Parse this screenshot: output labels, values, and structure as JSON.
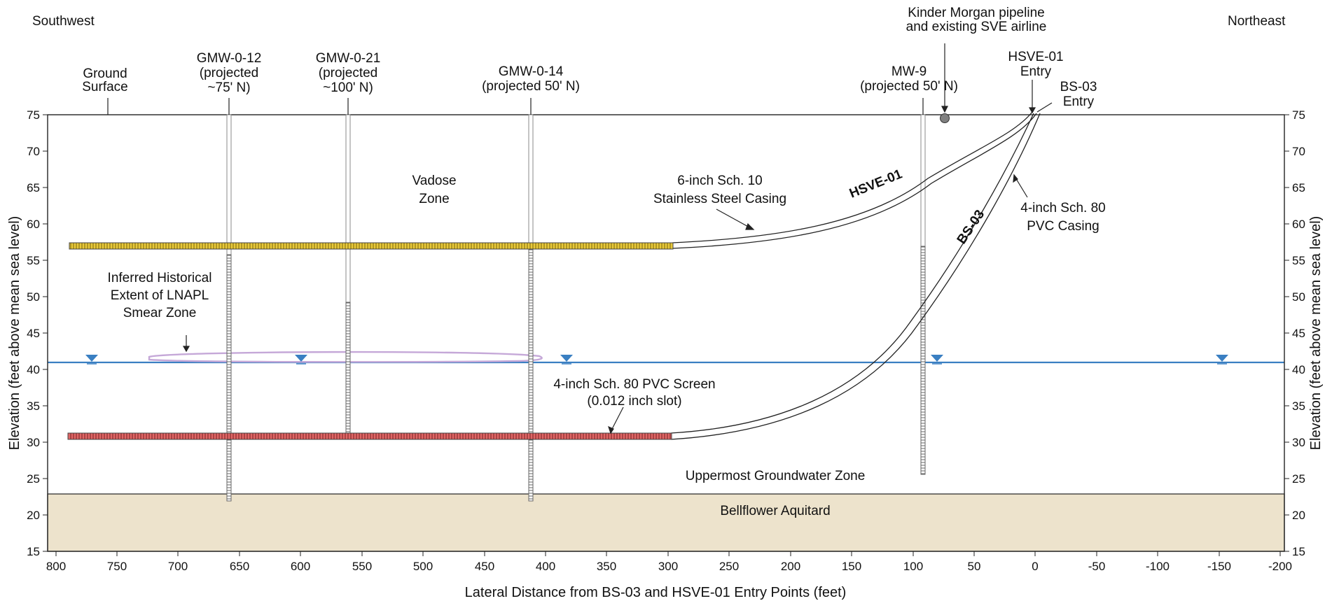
{
  "chart_data": {
    "type": "cross-section",
    "xlabel": "Lateral Distance from BS-03 and HSVE-01 Entry Points (feet)",
    "ylabel_left": "Elevation (feet above mean sea level)",
    "ylabel_right": "Elevation (feet above mean sea level)",
    "xlim": [
      800,
      -200
    ],
    "ylim": [
      15,
      75
    ],
    "x_ticks": [
      800,
      750,
      700,
      650,
      600,
      550,
      500,
      450,
      400,
      350,
      300,
      250,
      200,
      150,
      100,
      50,
      0,
      -50,
      -100,
      -150,
      -200
    ],
    "y_ticks": [
      15,
      20,
      25,
      30,
      35,
      40,
      45,
      50,
      55,
      60,
      65,
      70,
      75
    ],
    "ground_surface_elev": 75,
    "groundwater_elev": 40.8,
    "aquitard_top_elev": 22.8,
    "water_table_markers_x": [
      773,
      602,
      385,
      83,
      -150
    ],
    "wells": [
      {
        "name": "GMW-0-12",
        "x": 660,
        "bottom": 21.5,
        "screen_top": 55.5
      },
      {
        "name": "GMW-0-21",
        "x": 563,
        "bottom": 30.5,
        "screen_top": 49
      },
      {
        "name": "MW-9",
        "x": 93,
        "bottom": 25,
        "screen_top": 57
      },
      {
        "name": "GMW-0-14",
        "x": 413,
        "bottom": 21.5,
        "screen_top": 57
      }
    ],
    "horizontal_wells": [
      {
        "name": "HSVE-01",
        "entry_x": 5,
        "screen_x": [
          790,
          300
        ],
        "screen_elev": 56.8
      },
      {
        "name": "BS-03",
        "entry_x": 0,
        "screen_x": [
          790,
          300
        ],
        "screen_elev": 30.4
      }
    ],
    "smear_zone": {
      "x": [
        725,
        415
      ],
      "elev": [
        41.4,
        42.2
      ]
    },
    "pipeline_marker": {
      "x": 75,
      "elev": 74.5
    }
  },
  "labels": {
    "southwest": "Southwest",
    "northeast": "Northeast",
    "ground_surface": [
      "Ground",
      "Surface"
    ],
    "gmw012": [
      "GMW-0-12",
      "(projected",
      "~75' N)"
    ],
    "gmw021": [
      "GMW-0-21",
      "(projected",
      "~100' N)"
    ],
    "gmw014": [
      "GMW-0-14",
      "(projected 50' N)"
    ],
    "mw9": [
      "MW-9",
      "(projected 50' N)"
    ],
    "kinder": [
      "Kinder Morgan pipeline",
      "and existing SVE airline"
    ],
    "hsve_entry": [
      "HSVE-01",
      "Entry"
    ],
    "bs03_entry": [
      "BS-03",
      "Entry"
    ],
    "vadose": [
      "Vadose",
      "Zone"
    ],
    "steel_casing": [
      "6-inch Sch. 10",
      "Stainless Steel Casing"
    ],
    "pvc_casing": [
      "4-inch Sch. 80",
      "PVC Casing"
    ],
    "hsve_label": "HSVE-01",
    "bs03_label": "BS-03",
    "lnapl": [
      "Inferred Historical",
      "Extent of LNAPL",
      "Smear Zone"
    ],
    "pvc_screen": [
      "4-inch Sch. 80 PVC Screen",
      "(0.012 inch slot)"
    ],
    "uppermost": "Uppermost Groundwater Zone",
    "bellflower": "Bellflower Aquitard"
  },
  "colors": {
    "aquitard": "#ede3cc",
    "water_line": "#3a7fc2",
    "water_marker": "#3a7fc2",
    "hsve_screen": "#e8c93a",
    "bs03_screen": "#e06666",
    "smear_zone": "#c5a8d8",
    "pipeline": "#808080"
  }
}
